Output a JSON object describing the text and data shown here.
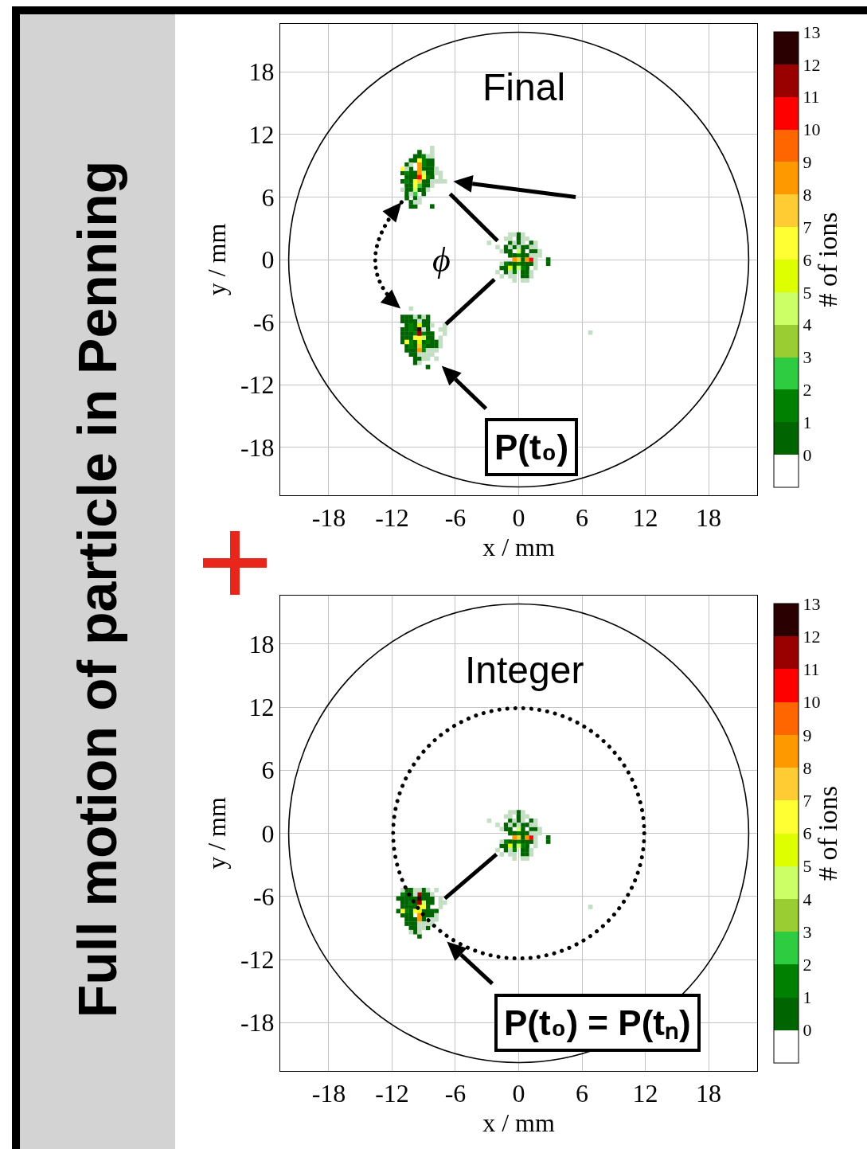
{
  "chart_data": [
    {
      "type": "scatter",
      "title": "Final",
      "xlabel": "x / mm",
      "ylabel": "y / mm",
      "clabel": "# of ions",
      "annotations": [
        "Full motion of particle in Penning",
        "ϕ",
        "P(t₀)"
      ],
      "xlim": [
        -22.6,
        22.6
      ],
      "ylim": [
        -22.6,
        22.6
      ],
      "xticks": [
        -18,
        -12,
        -6,
        0,
        6,
        12,
        18
      ],
      "yticks": [
        -18,
        -12,
        -6,
        0,
        6,
        12,
        18
      ],
      "clim": [
        -1,
        13
      ],
      "cticks": [
        0,
        1,
        2,
        3,
        4,
        5,
        6,
        7,
        8,
        9,
        10,
        11,
        12,
        13
      ],
      "grid": true,
      "marker": "square",
      "series": [
        {
          "color": "#006400",
          "x": [
            -9.4,
            -9.8,
            -9.4,
            -10.2,
            -9.8,
            -8.6,
            -8.2,
            -10.6,
            -8.6,
            -8.2,
            -10.2,
            -9.0,
            -8.6,
            -8.2,
            -11.0,
            -10.2,
            -9.8,
            -8.6,
            -8.2,
            -10.6,
            -10.2,
            -9.8,
            -8.2,
            -11.0,
            -10.2,
            -9.0,
            -8.6,
            -10.6,
            -10.2,
            -9.0,
            -8.6,
            -10.6,
            -10.2,
            -9.4,
            -9.0,
            -10.6,
            -9.0,
            -10.6,
            -9.8,
            -10.2,
            -10.2,
            -9.8,
            -8.2,
            0.0,
            0.0,
            -0.8,
            0.0,
            1.2,
            -1.2,
            -0.4,
            0.4,
            0.8,
            -1.2,
            -0.8,
            0.4,
            1.2,
            1.6,
            -0.8,
            -0.4,
            0.4,
            0.8,
            0.4,
            2.8,
            -0.8,
            -0.4,
            0.4,
            0.8,
            1.2,
            2.8,
            -1.6,
            -1.2,
            -0.4,
            0.8,
            -1.2,
            0.4,
            0.8,
            0.4,
            0.8,
            -11.0,
            -10.6,
            -10.2,
            -9.4,
            -8.6,
            -11.0,
            -10.6,
            -10.2,
            -9.8,
            -9.0,
            -8.6,
            -10.6,
            -9.8,
            -9.0,
            -8.6,
            -11.0,
            -10.6,
            -9.8,
            -8.6,
            -11.0,
            -10.6,
            -10.2,
            -8.6,
            -8.2,
            -11.0,
            -10.6,
            -10.2,
            -8.6,
            -8.2,
            -11.0,
            -9.8,
            -9.0,
            -8.2,
            -7.8,
            -10.6,
            -9.8,
            -8.6,
            -8.2,
            -7.8,
            -10.6,
            -10.2,
            -9.8,
            -10.2,
            -9.8,
            -9.8,
            -9.4,
            -9.8,
            -8.6
          ],
          "values": [
            10.3,
            9.9,
            9.9,
            9.5,
            9.5,
            9.5,
            9.5,
            9.1,
            9.1,
            9.1,
            8.7,
            8.7,
            8.7,
            8.7,
            8.3,
            8.3,
            8.3,
            8.3,
            8.3,
            7.9,
            7.9,
            7.9,
            7.9,
            7.5,
            7.5,
            7.5,
            7.5,
            7.1,
            7.1,
            7.1,
            7.1,
            6.7,
            6.7,
            6.7,
            6.7,
            6.3,
            6.3,
            5.9,
            5.9,
            5.5,
            5.1,
            5.1,
            5.1,
            2.4,
            2.0,
            1.6,
            1.6,
            1.6,
            1.2,
            1.2,
            1.2,
            1.2,
            0.8,
            0.8,
            0.8,
            0.8,
            0.8,
            0.4,
            0.4,
            0.4,
            0.4,
            0.0,
            0.0,
            -0.4,
            -0.4,
            -0.4,
            -0.4,
            -0.4,
            -0.4,
            -0.8,
            -0.8,
            -0.8,
            -0.8,
            -1.2,
            -1.2,
            -1.2,
            -1.6,
            -1.6,
            -5.5,
            -5.5,
            -5.5,
            -5.5,
            -5.5,
            -5.9,
            -5.9,
            -5.9,
            -5.9,
            -5.9,
            -5.9,
            -6.3,
            -6.3,
            -6.3,
            -6.3,
            -6.7,
            -6.7,
            -6.7,
            -6.7,
            -7.1,
            -7.1,
            -7.1,
            -7.1,
            -7.1,
            -7.5,
            -7.5,
            -7.5,
            -7.5,
            -7.5,
            -7.9,
            -7.9,
            -7.9,
            -7.9,
            -7.9,
            -8.3,
            -8.3,
            -8.3,
            -8.3,
            -8.3,
            -8.7,
            -8.7,
            -8.7,
            -9.1,
            -9.1,
            -9.5,
            -9.5,
            -9.9,
            -10.3
          ]
        },
        {
          "color": "#008000",
          "x": [
            -9.0,
            -9.0,
            -9.0,
            -10.6,
            -8.6,
            -10.6,
            0.0,
            -1.2,
            0.0,
            0.4,
            -0.4,
            -10.2,
            -10.2,
            -9.8,
            -9.0,
            -10.2,
            -8.6,
            -10.2,
            -9.0,
            -9.0
          ],
          "values": [
            9.9,
            9.5,
            9.1,
            8.3,
            7.9,
            7.5,
            0.4,
            -0.4,
            -0.4,
            -0.8,
            -1.2,
            -6.3,
            -6.7,
            -7.1,
            -7.1,
            -7.9,
            -7.9,
            -8.3,
            -8.3,
            -8.7
          ]
        },
        {
          "color": "#2ecc40",
          "x": [
            -9.4,
            -9.8
          ],
          "values": [
            7.1,
            6.3
          ]
        },
        {
          "color": "#ccff66",
          "x": [
            -9.0,
            -9.8,
            0.0,
            0.0,
            -9.0
          ],
          "values": [
            8.3,
            6.7,
            0.8,
            -0.8,
            -7.5
          ]
        },
        {
          "color": "#ddff00",
          "x": [
            -0.8,
            -9.4,
            -9.4
          ],
          "values": [
            -0.8,
            -6.3,
            -7.9
          ]
        },
        {
          "color": "#ffff33",
          "x": [
            -9.4,
            -11.0,
            -9.0,
            -9.8,
            -9.8,
            -9.8,
            -9.4,
            -10.6
          ],
          "values": [
            9.5,
            8.7,
            7.9,
            7.5,
            7.1,
            -7.5,
            -7.5,
            -7.9
          ]
        },
        {
          "color": "#ffcc33",
          "x": [
            -9.4,
            0.0,
            -9.4
          ],
          "values": [
            7.5,
            0.0,
            -8.3
          ]
        },
        {
          "color": "#ff9900",
          "x": [
            -9.4,
            -9.4,
            -9.4,
            -0.4,
            0.8,
            -9.4
          ],
          "values": [
            9.1,
            8.7,
            8.3,
            0.0,
            0.0,
            -8.7
          ]
        },
        {
          "color": "#ff0000",
          "x": [
            -9.4,
            1.2
          ],
          "values": [
            7.9,
            0.0
          ]
        },
        {
          "color": "#990000",
          "x": [
            -9.4
          ],
          "values": [
            -7.1
          ]
        },
        {
          "color": "#2a0000",
          "x": [
            -9.4
          ],
          "values": [
            -6.7
          ]
        },
        {
          "color": "#c4dec4",
          "x": [
            -8.2,
            -8.2,
            -8.6,
            -8.2,
            -10.2,
            -10.6,
            -7.8,
            -7.8,
            -7.4,
            -7.4,
            -8.2,
            -7.8,
            -7.4,
            -7.0,
            -8.2,
            -11.0,
            -8.6,
            -10.2,
            -9.4,
            -9.8,
            -9.4,
            -0.8,
            -0.4,
            0.4,
            -1.2,
            -0.8,
            0.4,
            0.8,
            -2.8,
            -0.4,
            0.4,
            1.6,
            -2.0,
            -0.8,
            0.0,
            1.2,
            1.6,
            -1.6,
            2.0,
            1.2,
            1.6,
            2.0,
            1.6,
            -1.6,
            1.6,
            1.6,
            -2.0,
            -0.8,
            1.2,
            -1.6,
            -0.8,
            -0.4,
            1.2,
            -0.4,
            0.4,
            0.8,
            -10.2,
            -9.8,
            -9.0,
            -9.4,
            -8.2,
            -7.0,
            -9.0,
            -7.4,
            -7.0,
            -7.0,
            -7.4,
            -7.4,
            -7.4,
            -8.6,
            -8.2,
            -7.8,
            -9.4,
            -9.0,
            -8.6,
            -8.2,
            -9.0,
            -8.6,
            -7.8,
            -9.4,
            6.8
          ],
          "values": [
            10.7,
            10.3,
            9.9,
            9.9,
            9.1,
            8.7,
            8.7,
            8.3,
            8.3,
            7.9,
            7.5,
            7.5,
            7.5,
            7.5,
            7.1,
            6.7,
            6.7,
            6.3,
            5.9,
            5.5,
            5.5,
            2.4,
            2.4,
            2.4,
            2.0,
            2.0,
            2.0,
            2.0,
            1.6,
            1.6,
            1.6,
            1.6,
            1.2,
            1.2,
            1.2,
            1.2,
            1.2,
            0.8,
            0.8,
            0.4,
            0.4,
            0.4,
            0.0,
            -0.4,
            -0.4,
            -0.8,
            -1.2,
            -1.2,
            -1.2,
            -1.6,
            -1.6,
            -1.6,
            -1.6,
            -2.0,
            -2.0,
            -2.0,
            -4.7,
            -5.5,
            -5.5,
            -5.9,
            -6.3,
            -6.3,
            -6.7,
            -6.7,
            -6.7,
            -7.1,
            -7.5,
            -7.9,
            -8.3,
            -8.7,
            -8.7,
            -8.7,
            -9.1,
            -9.1,
            -9.1,
            -9.1,
            -9.5,
            -9.5,
            -9.5,
            -9.9,
            -7.0
          ]
        }
      ]
    },
    {
      "type": "scatter",
      "title": "Integer",
      "xlabel": "x / mm",
      "ylabel": "y / mm",
      "clabel": "# of ions",
      "annotations": [
        "P(t₀) = P(tₙ)"
      ],
      "xlim": [
        -22.6,
        22.6
      ],
      "ylim": [
        -22.6,
        22.6
      ],
      "xticks": [
        -18,
        -12,
        -6,
        0,
        6,
        12,
        18
      ],
      "yticks": [
        -18,
        -12,
        -6,
        0,
        6,
        12,
        18
      ],
      "clim": [
        -1,
        13
      ],
      "cticks": [
        0,
        1,
        2,
        3,
        4,
        5,
        6,
        7,
        8,
        9,
        10,
        11,
        12,
        13
      ],
      "grid": true,
      "marker": "square",
      "series": [
        {
          "color": "#006400",
          "x": [
            0.0,
            0.0,
            -0.8,
            0.0,
            1.2,
            -1.2,
            -0.4,
            0.4,
            0.8,
            -1.2,
            -0.8,
            0.4,
            1.2,
            1.6,
            -0.8,
            -0.4,
            0.4,
            0.8,
            0.4,
            2.8,
            -0.8,
            -0.4,
            0.4,
            0.8,
            1.2,
            2.8,
            -1.6,
            -1.2,
            -0.4,
            0.8,
            -1.2,
            0.4,
            0.8,
            0.4,
            0.8,
            -10.6,
            -10.2,
            -9.0,
            -10.6,
            -10.2,
            -9.0,
            -8.6,
            -11.4,
            -11.0,
            -10.6,
            -10.2,
            -9.8,
            -9.0,
            -8.6,
            -8.2,
            -11.0,
            -10.6,
            -9.8,
            -8.6,
            -8.2,
            -11.0,
            -10.6,
            -10.2,
            -9.8,
            -8.6,
            -11.4,
            -10.2,
            -9.0,
            -8.6,
            -8.2,
            -7.8,
            -11.0,
            -10.6,
            -10.2,
            -9.0,
            -8.6,
            -8.2,
            -10.6,
            -10.2,
            -9.8,
            -9.0,
            -10.6,
            -10.2,
            -9.8,
            -10.2,
            -9.8,
            -8.6,
            -9.8,
            -9.4
          ],
          "values": [
            2.0,
            1.6,
            1.2,
            1.2,
            1.2,
            0.8,
            0.8,
            0.8,
            0.8,
            0.4,
            0.4,
            0.4,
            0.4,
            0.4,
            0.0,
            0.0,
            0.0,
            0.0,
            -0.4,
            -0.4,
            -0.8,
            -0.8,
            -0.8,
            -0.8,
            -0.8,
            -0.8,
            -1.2,
            -1.2,
            -1.2,
            -1.2,
            -1.6,
            -1.6,
            -1.6,
            -2.0,
            -2.0,
            -5.4,
            -5.4,
            -5.4,
            -5.8,
            -5.8,
            -5.8,
            -5.8,
            -6.2,
            -6.2,
            -6.2,
            -6.2,
            -6.2,
            -6.2,
            -6.2,
            -6.2,
            -6.6,
            -6.6,
            -6.6,
            -6.6,
            -6.6,
            -7.0,
            -7.0,
            -7.0,
            -7.0,
            -7.0,
            -7.4,
            -7.4,
            -7.4,
            -7.4,
            -7.4,
            -7.4,
            -7.8,
            -7.8,
            -7.8,
            -7.8,
            -7.8,
            -7.8,
            -8.2,
            -8.2,
            -8.2,
            -8.2,
            -8.6,
            -8.6,
            -8.6,
            -9.0,
            -9.0,
            -9.0,
            -9.4,
            -9.8
          ]
        },
        {
          "color": "#008000",
          "x": [
            0.0,
            -1.2,
            0.0,
            0.4,
            -0.4,
            -11.0,
            -10.2,
            -10.6
          ],
          "values": [
            0.0,
            -0.8,
            -0.8,
            -1.2,
            -1.6,
            -5.8,
            -6.6,
            -7.4
          ]
        },
        {
          "color": "#ccff66",
          "x": [
            0.0,
            0.0,
            -9.0
          ],
          "values": [
            0.4,
            -1.2,
            -6.6
          ]
        },
        {
          "color": "#ddff00",
          "x": [
            -0.8,
            -9.4
          ],
          "values": [
            -1.2,
            -7.4
          ]
        },
        {
          "color": "#ffff33",
          "x": [
            -9.4,
            -9.0,
            -11.0,
            -9.8
          ],
          "values": [
            -7.0,
            -7.0,
            -7.4,
            -7.4
          ]
        },
        {
          "color": "#ffcc33",
          "x": [
            0.0
          ],
          "values": [
            -0.4
          ]
        },
        {
          "color": "#ff9900",
          "x": [
            -0.4,
            0.8,
            -9.4,
            -9.4
          ],
          "values": [
            -0.4,
            -0.4,
            -7.8,
            -8.2
          ]
        },
        {
          "color": "#ff0000",
          "x": [
            1.2
          ],
          "values": [
            -0.4
          ]
        },
        {
          "color": "#990000",
          "x": [
            -9.4,
            -9.4
          ],
          "values": [
            -5.8,
            -6.6
          ]
        },
        {
          "color": "#2a0000",
          "x": [
            -9.4
          ],
          "values": [
            -6.2
          ]
        },
        {
          "color": "#c4dec4",
          "x": [
            -0.8,
            -0.4,
            0.4,
            -1.2,
            -0.8,
            0.4,
            0.8,
            -2.8,
            -0.4,
            0.4,
            1.6,
            -2.0,
            -0.8,
            0.0,
            1.2,
            1.6,
            -1.6,
            2.0,
            1.2,
            1.6,
            2.0,
            1.6,
            -1.6,
            1.6,
            1.6,
            -2.0,
            -0.8,
            1.2,
            -1.6,
            -0.8,
            -0.4,
            1.2,
            -0.4,
            0.4,
            0.8,
            -11.0,
            -9.8,
            -9.4,
            -8.6,
            -7.8,
            -9.8,
            -8.2,
            -7.4,
            -7.4,
            -7.0,
            -7.4,
            -7.8,
            -8.2,
            -7.8,
            -9.4,
            -9.0,
            -8.6,
            -8.2,
            -9.4,
            -9.0,
            -10.2,
            -9.4,
            6.8
          ],
          "values": [
            2.0,
            2.0,
            2.0,
            1.6,
            1.6,
            1.6,
            1.6,
            1.2,
            1.2,
            1.2,
            1.2,
            0.8,
            0.8,
            0.8,
            0.8,
            0.8,
            0.4,
            0.4,
            0.0,
            0.0,
            0.0,
            -0.4,
            -0.8,
            -0.8,
            -1.2,
            -1.6,
            -1.6,
            -1.6,
            -2.0,
            -2.0,
            -2.0,
            -2.0,
            -2.4,
            -2.4,
            -2.4,
            -5.4,
            -5.4,
            -5.4,
            -5.4,
            -5.4,
            -5.8,
            -5.8,
            -6.2,
            -6.6,
            -6.6,
            -7.0,
            -7.8,
            -8.2,
            -8.2,
            -8.6,
            -8.6,
            -8.6,
            -8.6,
            -9.0,
            -9.0,
            -9.4,
            -9.4,
            -7.0
          ]
        }
      ]
    }
  ]
}
